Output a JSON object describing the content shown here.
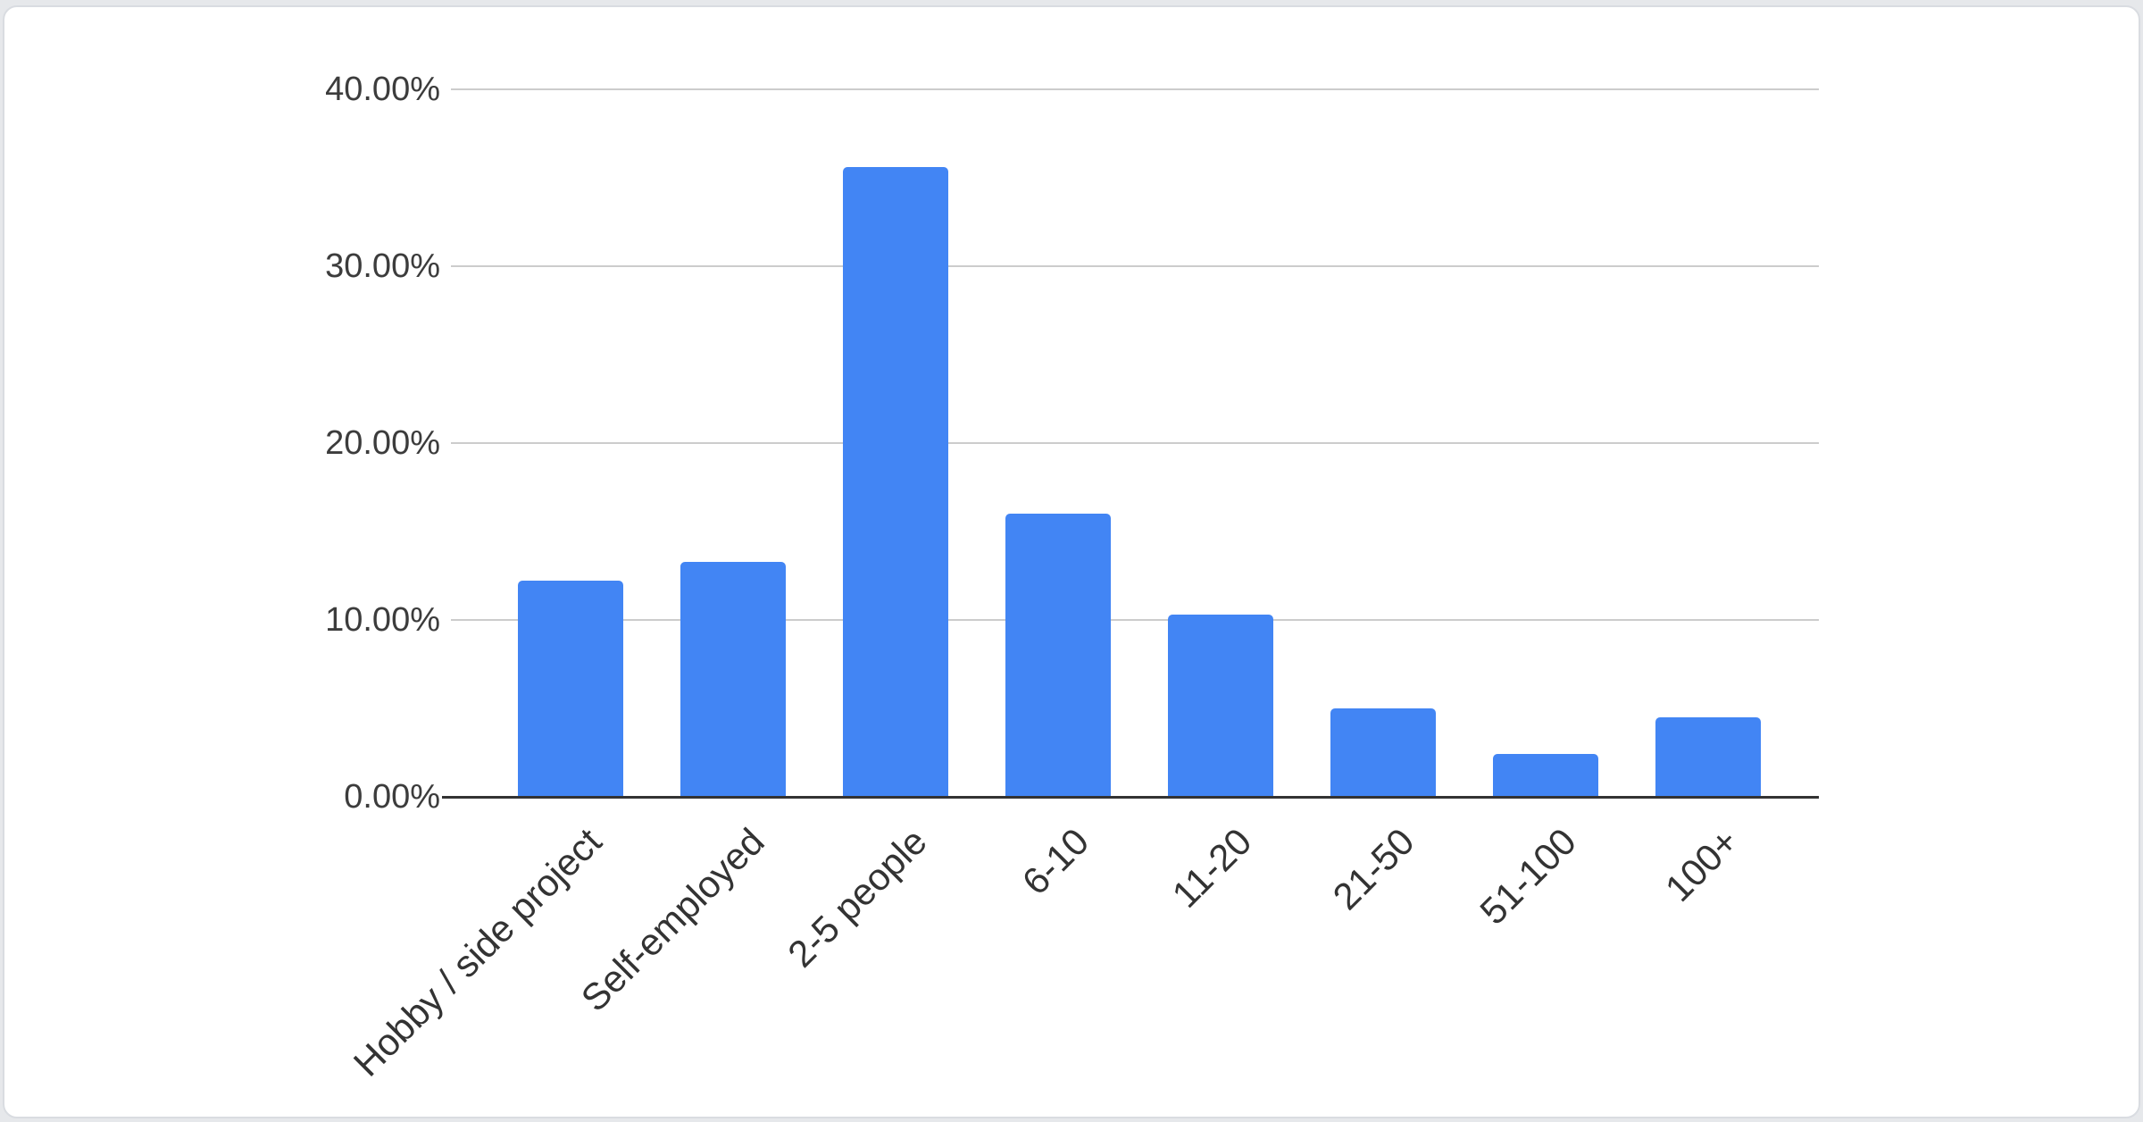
{
  "page": {
    "background_color": "#e6e8eb",
    "card_background_color": "#ffffff",
    "card_border_color": "#d9dce1"
  },
  "chart_data": {
    "type": "bar",
    "title": "",
    "xlabel": "",
    "ylabel": "",
    "categories": [
      "Hobby / side project",
      "Self-employed",
      "2-5 people",
      "6-10",
      "11-20",
      "21-50",
      "51-100",
      "100+"
    ],
    "values": [
      12.2,
      13.3,
      35.6,
      16.0,
      10.3,
      5.0,
      2.4,
      4.5
    ],
    "value_unit": "%",
    "ylim": [
      0,
      40
    ],
    "y_ticks": [
      {
        "value": 40,
        "label": "40.00%"
      },
      {
        "value": 30,
        "label": "30.00%"
      },
      {
        "value": 20,
        "label": "20.00%"
      },
      {
        "value": 10,
        "label": "10.00%"
      },
      {
        "value": 0,
        "label": "0.00%"
      }
    ],
    "grid": true,
    "legend_position": "none",
    "bar_color": "#4285f4",
    "gridline_color": "#cccccc",
    "axis_line_color": "#333333",
    "label_color": "#3c3c3c"
  }
}
